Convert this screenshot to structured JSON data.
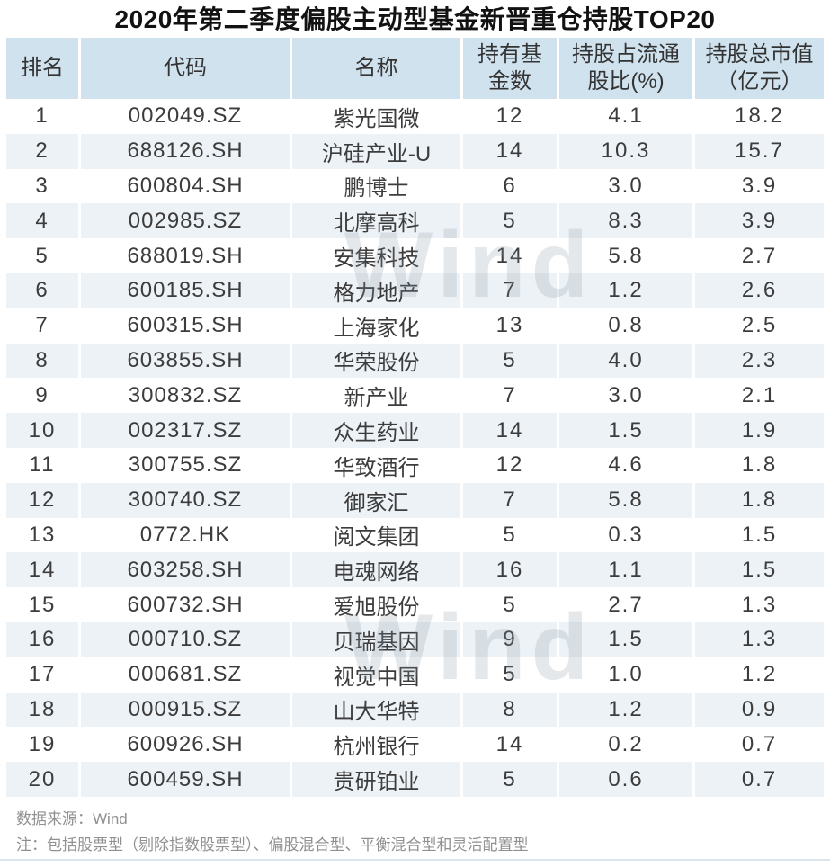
{
  "title": "2020年第二季度偏股主动型基金新晋重仓持股TOP20",
  "watermark_text": "Wind",
  "colors": {
    "header_bg": "#cfe2ee",
    "row_alt_bg": "#edf2f7",
    "title_text": "#121212",
    "body_text": "#3c3c3c",
    "footer_text": "#909090",
    "divider": "#dbe5ed",
    "watermark": "#dde3e8"
  },
  "chart_data": {
    "type": "table",
    "title": "2020年第二季度偏股主动型基金新晋重仓持股TOP20",
    "columns": [
      {
        "key": "rank",
        "label": "排名",
        "header_display": "排名"
      },
      {
        "key": "code",
        "label": "代码",
        "header_display": "代码"
      },
      {
        "key": "name",
        "label": "名称",
        "header_display": "名称"
      },
      {
        "key": "funds",
        "label": "持有基金数",
        "header_display": "持有基\n金数"
      },
      {
        "key": "float_pct",
        "label": "持股占流通股比(%)",
        "header_display": "持股占流通\n股比(%)"
      },
      {
        "key": "market_value",
        "label": "持股总市值（亿元）",
        "header_display": "持股总市值\n（亿元）"
      }
    ],
    "rows": [
      {
        "rank": "1",
        "code": "002049.SZ",
        "name": "紫光国微",
        "funds": "12",
        "float_pct": "4.1",
        "market_value": "18.2"
      },
      {
        "rank": "2",
        "code": "688126.SH",
        "name": "沪硅产业-U",
        "funds": "14",
        "float_pct": "10.3",
        "market_value": "15.7"
      },
      {
        "rank": "3",
        "code": "600804.SH",
        "name": "鹏博士",
        "funds": "6",
        "float_pct": "3.0",
        "market_value": "3.9"
      },
      {
        "rank": "4",
        "code": "002985.SZ",
        "name": "北摩高科",
        "funds": "5",
        "float_pct": "8.3",
        "market_value": "3.9"
      },
      {
        "rank": "5",
        "code": "688019.SH",
        "name": "安集科技",
        "funds": "14",
        "float_pct": "5.8",
        "market_value": "2.7"
      },
      {
        "rank": "6",
        "code": "600185.SH",
        "name": "格力地产",
        "funds": "7",
        "float_pct": "1.2",
        "market_value": "2.6"
      },
      {
        "rank": "7",
        "code": "600315.SH",
        "name": "上海家化",
        "funds": "13",
        "float_pct": "0.8",
        "market_value": "2.5"
      },
      {
        "rank": "8",
        "code": "603855.SH",
        "name": "华荣股份",
        "funds": "5",
        "float_pct": "4.0",
        "market_value": "2.3"
      },
      {
        "rank": "9",
        "code": "300832.SZ",
        "name": "新产业",
        "funds": "7",
        "float_pct": "3.0",
        "market_value": "2.1"
      },
      {
        "rank": "10",
        "code": "002317.SZ",
        "name": "众生药业",
        "funds": "14",
        "float_pct": "1.5",
        "market_value": "1.9"
      },
      {
        "rank": "11",
        "code": "300755.SZ",
        "name": "华致酒行",
        "funds": "12",
        "float_pct": "4.6",
        "market_value": "1.8"
      },
      {
        "rank": "12",
        "code": "300740.SZ",
        "name": "御家汇",
        "funds": "7",
        "float_pct": "5.8",
        "market_value": "1.8"
      },
      {
        "rank": "13",
        "code": "0772.HK",
        "name": "阅文集团",
        "funds": "5",
        "float_pct": "0.3",
        "market_value": "1.5"
      },
      {
        "rank": "14",
        "code": "603258.SH",
        "name": "电魂网络",
        "funds": "16",
        "float_pct": "1.1",
        "market_value": "1.5"
      },
      {
        "rank": "15",
        "code": "600732.SH",
        "name": "爱旭股份",
        "funds": "5",
        "float_pct": "2.7",
        "market_value": "1.3"
      },
      {
        "rank": "16",
        "code": "000710.SZ",
        "name": "贝瑞基因",
        "funds": "9",
        "float_pct": "1.5",
        "market_value": "1.3"
      },
      {
        "rank": "17",
        "code": "000681.SZ",
        "name": "视觉中国",
        "funds": "5",
        "float_pct": "1.0",
        "market_value": "1.2"
      },
      {
        "rank": "18",
        "code": "000915.SZ",
        "name": "山大华特",
        "funds": "8",
        "float_pct": "1.2",
        "market_value": "0.9"
      },
      {
        "rank": "19",
        "code": "600926.SH",
        "name": "杭州银行",
        "funds": "14",
        "float_pct": "0.2",
        "market_value": "0.7"
      },
      {
        "rank": "20",
        "code": "600459.SH",
        "name": "贵研铂业",
        "funds": "5",
        "float_pct": "0.6",
        "market_value": "0.7"
      }
    ]
  },
  "footer": {
    "source": "数据来源：Wind",
    "note": "注：包括股票型（剔除指数股票型）、偏股混合型、平衡混合型和灵活配置型"
  }
}
